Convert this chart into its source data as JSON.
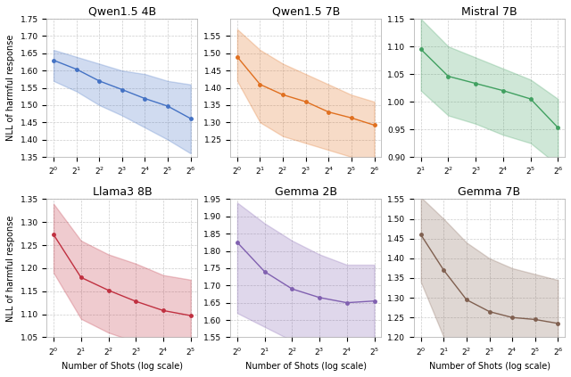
{
  "models": [
    "Qwen1.5 4B",
    "Qwen1.5 7B",
    "Mistral 7B",
    "Llama3 8B",
    "Gemma 2B",
    "Gemma 7B"
  ],
  "colors": [
    "#4472C4",
    "#E07020",
    "#40A060",
    "#C03040",
    "#8060B0",
    "#806050"
  ],
  "fill_alpha": 0.25,
  "x_shots": {
    "Qwen1.5 4B": [
      1,
      2,
      4,
      8,
      16,
      32,
      64
    ],
    "Qwen1.5 7B": [
      1,
      2,
      4,
      8,
      16,
      32,
      64
    ],
    "Mistral 7B": [
      2,
      4,
      8,
      16,
      32,
      64
    ],
    "Llama3 8B": [
      1,
      2,
      4,
      8,
      16,
      32
    ],
    "Gemma 2B": [
      1,
      2,
      4,
      8,
      16,
      32
    ],
    "Gemma 7B": [
      1,
      2,
      4,
      8,
      16,
      32,
      64
    ]
  },
  "y_mean": {
    "Qwen1.5 4B": [
      1.63,
      1.604,
      1.57,
      1.545,
      1.519,
      1.497,
      1.461
    ],
    "Qwen1.5 7B": [
      1.49,
      1.41,
      1.38,
      1.36,
      1.33,
      1.313,
      1.292
    ],
    "Mistral 7B": [
      1.095,
      1.046,
      1.033,
      1.02,
      1.005,
      0.953
    ],
    "Llama3 8B": [
      1.273,
      1.18,
      1.152,
      1.128,
      1.108,
      1.097
    ],
    "Gemma 2B": [
      1.825,
      1.74,
      1.69,
      1.665,
      1.65,
      1.655
    ],
    "Gemma 7B": [
      1.46,
      1.37,
      1.295,
      1.265,
      1.25,
      1.245,
      1.235
    ]
  },
  "y_upper": {
    "Qwen1.5 4B": [
      1.66,
      1.64,
      1.62,
      1.6,
      1.59,
      1.57,
      1.56
    ],
    "Qwen1.5 7B": [
      1.57,
      1.51,
      1.47,
      1.44,
      1.41,
      1.38,
      1.36
    ],
    "Mistral 7B": [
      1.15,
      1.1,
      1.08,
      1.06,
      1.04,
      1.005
    ],
    "Llama3 8B": [
      1.34,
      1.26,
      1.23,
      1.21,
      1.185,
      1.175
    ],
    "Gemma 2B": [
      1.94,
      1.88,
      1.83,
      1.79,
      1.76,
      1.76
    ],
    "Gemma 7B": [
      1.555,
      1.5,
      1.44,
      1.4,
      1.375,
      1.36,
      1.345
    ]
  },
  "y_lower": {
    "Qwen1.5 4B": [
      1.57,
      1.54,
      1.5,
      1.47,
      1.435,
      1.4,
      1.36
    ],
    "Qwen1.5 7B": [
      1.42,
      1.3,
      1.26,
      1.24,
      1.22,
      1.2,
      1.17
    ],
    "Mistral 7B": [
      1.02,
      0.975,
      0.96,
      0.94,
      0.925,
      0.885
    ],
    "Llama3 8B": [
      1.19,
      1.09,
      1.06,
      1.04,
      1.02,
      1.01
    ],
    "Gemma 2B": [
      1.62,
      1.58,
      1.54,
      1.54,
      1.54,
      1.55
    ],
    "Gemma 7B": [
      1.34,
      1.2,
      1.11,
      1.09,
      1.09,
      1.09,
      1.09
    ]
  },
  "ylims": {
    "Qwen1.5 4B": [
      1.35,
      1.75
    ],
    "Qwen1.5 7B": [
      1.2,
      1.6
    ],
    "Mistral 7B": [
      0.9,
      1.15
    ],
    "Llama3 8B": [
      1.05,
      1.35
    ],
    "Gemma 2B": [
      1.55,
      1.95
    ],
    "Gemma 7B": [
      1.2,
      1.55
    ]
  },
  "yticks": {
    "Qwen1.5 4B": [
      1.35,
      1.4,
      1.45,
      1.5,
      1.55,
      1.6,
      1.65,
      1.7,
      1.75
    ],
    "Qwen1.5 7B": [
      1.25,
      1.3,
      1.35,
      1.4,
      1.45,
      1.5,
      1.55
    ],
    "Mistral 7B": [
      0.9,
      0.95,
      1.0,
      1.05,
      1.1,
      1.15
    ],
    "Llama3 8B": [
      1.05,
      1.1,
      1.15,
      1.2,
      1.25,
      1.3,
      1.35
    ],
    "Gemma 2B": [
      1.55,
      1.6,
      1.65,
      1.7,
      1.75,
      1.8,
      1.85,
      1.9,
      1.95
    ],
    "Gemma 7B": [
      1.2,
      1.25,
      1.3,
      1.35,
      1.4,
      1.45,
      1.5,
      1.55
    ]
  },
  "ylabel_left": "NLL of harmful response",
  "xlabel": "Number of Shots (log scale)",
  "grid_color": "#cccccc",
  "background_color": "#ffffff"
}
